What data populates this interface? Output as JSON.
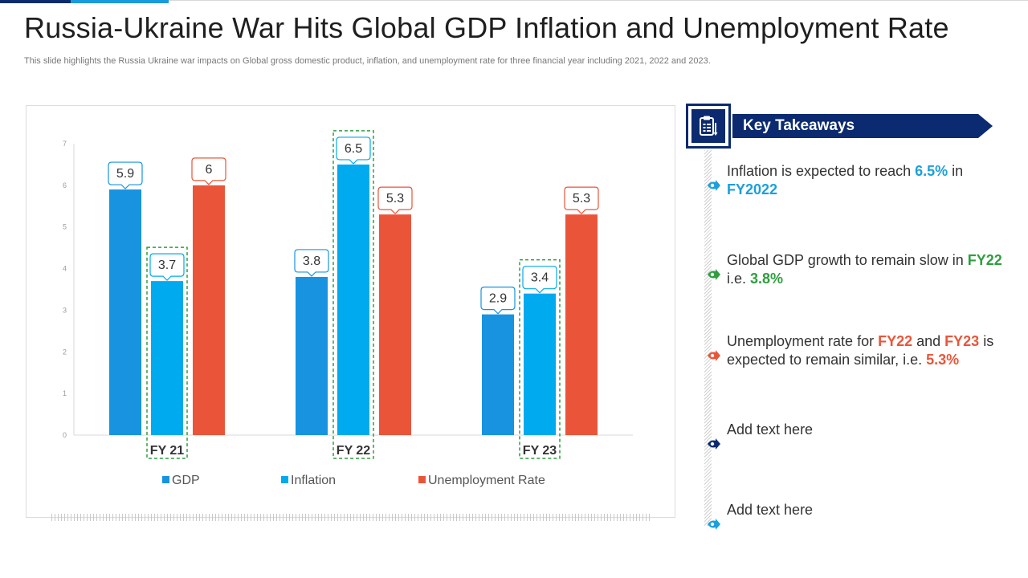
{
  "page": {
    "title": "Russia-Ukraine War Hits Global GDP Inflation and Unemployment Rate",
    "subtitle": "This slide highlights the Russia Ukraine war impacts on Global gross domestic product, inflation, and unemployment rate for three financial year including 2021, 2022 and 2023."
  },
  "colors": {
    "gdp": "#1793e0",
    "inflation": "#00aaee",
    "unemployment": "#ea553a",
    "navy": "#0b2a6f",
    "highlight_green": "#2e9e3e"
  },
  "chart_data": {
    "type": "bar",
    "categories": [
      "FY 21",
      "FY 22",
      "FY 23"
    ],
    "series": [
      {
        "name": "GDP",
        "values": [
          5.9,
          3.8,
          2.9
        ]
      },
      {
        "name": "Inflation",
        "values": [
          3.7,
          6.5,
          3.4
        ]
      },
      {
        "name": "Unemployment Rate",
        "values": [
          6,
          5.3,
          5.3
        ]
      }
    ],
    "ylim": [
      0,
      7
    ],
    "yticks": [
      0,
      1,
      2,
      3,
      4,
      5,
      6,
      7
    ],
    "legend_position": "bottom",
    "grid": false,
    "highlighted": [
      {
        "category": "FY 21",
        "series": "Inflation"
      },
      {
        "category": "FY 22",
        "series": "Inflation"
      },
      {
        "category": "FY 23",
        "series": "Inflation"
      }
    ]
  },
  "takeaways": {
    "heading": "Key Takeaways",
    "icon": "clipboard-chart-icon",
    "items": [
      {
        "icon": "arrow-right-icon",
        "color": "#1aa0dc",
        "parts": [
          {
            "text": "Inflation is expected to reach "
          },
          {
            "text": "6.5%",
            "style": "blue"
          },
          {
            "text": " in "
          },
          {
            "text": "FY2022",
            "style": "blue"
          }
        ]
      },
      {
        "icon": "arrow-right-icon",
        "color": "#2e9e3e",
        "parts": [
          {
            "text": "Global GDP growth to remain slow in "
          },
          {
            "text": "FY22",
            "style": "green"
          },
          {
            "text": " i.e. "
          },
          {
            "text": "3.8%",
            "style": "green"
          }
        ]
      },
      {
        "icon": "arrow-right-icon",
        "color": "#e8563a",
        "parts": [
          {
            "text": "Unemployment rate for "
          },
          {
            "text": "FY22",
            "style": "red"
          },
          {
            "text": " and "
          },
          {
            "text": "FY23",
            "style": "red"
          },
          {
            "text": " is expected to remain similar, i.e. "
          },
          {
            "text": "5.3%",
            "style": "red"
          }
        ]
      },
      {
        "icon": "arrow-right-icon",
        "color": "#0b2a6f",
        "parts": [
          {
            "text": "Add text here"
          }
        ]
      },
      {
        "icon": "arrow-right-icon",
        "color": "#1aa0dc",
        "parts": [
          {
            "text": "Add text here"
          }
        ]
      }
    ]
  }
}
